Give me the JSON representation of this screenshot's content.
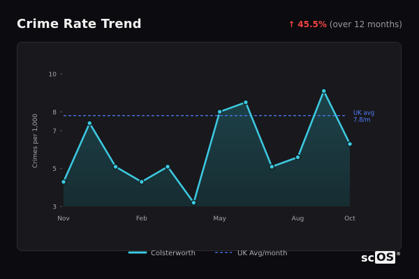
{
  "header": {
    "title": "Crime Rate Trend",
    "change_arrow": "↑",
    "change_value": "45.5%",
    "change_note": "(over 12 months)"
  },
  "logo": {
    "text_sc": "sc",
    "text_os": "OS",
    "reg": "®"
  },
  "colors": {
    "line": "#3cc8e0",
    "area": "#1c3a3f",
    "avg": "#4f7fff",
    "up": "#ef4444"
  },
  "chart_data": {
    "type": "line",
    "title": "Crime Rate Trend",
    "ylabel": "Crimes per 1,000",
    "xlabel": "",
    "ylim": [
      3,
      10
    ],
    "y_ticks": [
      3,
      5,
      7,
      8,
      10
    ],
    "x_ticks": [
      "Nov",
      "Feb",
      "May",
      "Aug",
      "Oct"
    ],
    "grid": false,
    "legend_position": "bottom",
    "series": [
      {
        "name": "Colsterworth",
        "style": "solid",
        "values": [
          4.3,
          7.4,
          5.1,
          4.3,
          5.1,
          3.2,
          8.0,
          8.5,
          5.1,
          5.6,
          9.1,
          6.3
        ]
      },
      {
        "name": "UK Avg/month",
        "style": "dashed",
        "values": [
          7.8,
          7.8,
          7.8,
          7.8,
          7.8,
          7.8,
          7.8,
          7.8,
          7.8,
          7.8,
          7.8,
          7.8
        ]
      }
    ],
    "annotation": {
      "line1": "UK avg",
      "line2": "7.8/m"
    }
  }
}
